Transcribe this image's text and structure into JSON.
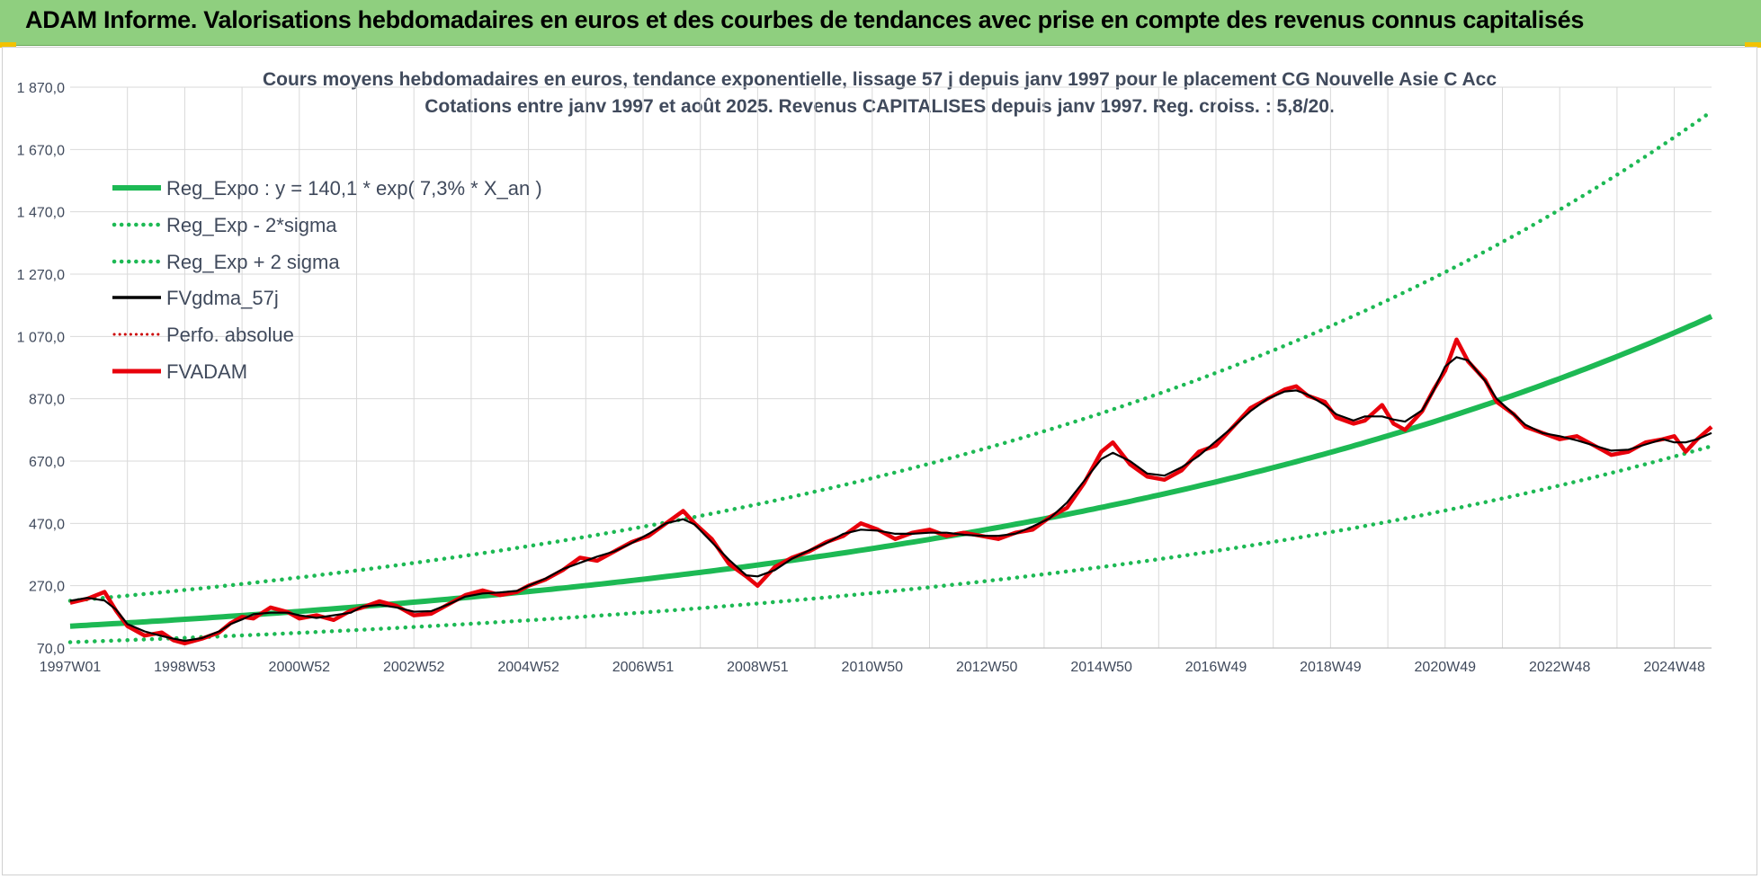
{
  "banner": {
    "title": "ADAM Informe. Valorisations hebdomadaires en euros et des courbes de tendances avec prise en compte des revenus connus capitalisés"
  },
  "colors": {
    "banner_bg": "#8fcf7f",
    "reg_green": "#1db954",
    "fv_black": "#000000",
    "fvadam_red": "#e8000b",
    "perfo_red": "#cc0000",
    "grid": "#d9d9d9",
    "text": "#404a5c"
  },
  "chart_data": {
    "type": "line",
    "title": "Cours moyens  hebdomadaires en euros, tendance exponentielle, lissage 57 j depuis janv 1997 pour le placement CG Nouvelle Asie C Acc",
    "subtitle": "Cotations entre janv 1997 et août 2025. Revenus CAPITALISES depuis janv 1997. Reg. croiss. : 5,8/20.",
    "xlabel": "",
    "ylabel": "",
    "grid": true,
    "legend_position": "top-left",
    "xlim": [
      1997.0,
      2025.65
    ],
    "ylim": [
      70,
      1870
    ],
    "y_ticks": [
      "70,0",
      "270,0",
      "470,0",
      "670,0",
      "870,0",
      "1 070,0",
      "1 270,0",
      "1 470,0",
      "1 670,0",
      "1 870,0"
    ],
    "y_tick_values": [
      70,
      270,
      470,
      670,
      870,
      1070,
      1270,
      1470,
      1670,
      1870
    ],
    "x_tick_labels": [
      "1997W01",
      "1998W53",
      "2000W52",
      "2002W52",
      "2004W52",
      "2006W51",
      "2008W51",
      "2010W50",
      "2012W50",
      "2014W50",
      "2016W49",
      "2018W49",
      "2020W49",
      "2022W48",
      "2024W48"
    ],
    "x_tick_values": [
      1997.0,
      1999.0,
      2001.0,
      2003.0,
      2005.0,
      2007.0,
      2009.0,
      2011.0,
      2013.0,
      2015.0,
      2017.0,
      2019.0,
      2021.0,
      2023.0,
      2025.0
    ],
    "regression": {
      "a": 140.1,
      "rate": 0.073,
      "start": 1997.0,
      "sigma_factor": 1.58
    },
    "series": [
      {
        "name": "Reg_Expo : y = 140,1 * exp( 7,3% *  X_an )",
        "style": "solid-thick",
        "color": "#1db954"
      },
      {
        "name": "Reg_Exp - 2*sigma",
        "style": "dotted",
        "color": "#1db954"
      },
      {
        "name": "Reg_Exp + 2 sigma",
        "style": "dotted",
        "color": "#1db954"
      },
      {
        "name": "FVgdma_57j",
        "style": "solid",
        "color": "#000000"
      },
      {
        "name": "Perfo. absolue",
        "style": "dotted",
        "color": "#cc0000"
      },
      {
        "name": "FVADAM",
        "style": "solid-thick",
        "color": "#e8000b",
        "x": [
          1997.0,
          1997.3,
          1997.6,
          1997.8,
          1998.0,
          1998.3,
          1998.6,
          1998.8,
          1999.0,
          1999.3,
          1999.6,
          1999.8,
          2000.0,
          2000.2,
          2000.5,
          2000.8,
          2001.0,
          2001.3,
          2001.6,
          2001.9,
          2002.1,
          2002.4,
          2002.7,
          2003.0,
          2003.3,
          2003.6,
          2003.9,
          2004.2,
          2004.5,
          2004.8,
          2005.0,
          2005.3,
          2005.6,
          2005.9,
          2006.2,
          2006.5,
          2006.8,
          2007.1,
          2007.4,
          2007.7,
          2007.9,
          2008.2,
          2008.5,
          2008.8,
          2009.0,
          2009.3,
          2009.6,
          2009.9,
          2010.2,
          2010.5,
          2010.8,
          2011.1,
          2011.4,
          2011.7,
          2012.0,
          2012.3,
          2012.6,
          2012.9,
          2013.2,
          2013.5,
          2013.8,
          2014.1,
          2014.4,
          2014.7,
          2015.0,
          2015.2,
          2015.5,
          2015.8,
          2016.1,
          2016.4,
          2016.7,
          2017.0,
          2017.3,
          2017.6,
          2017.9,
          2018.2,
          2018.4,
          2018.6,
          2018.9,
          2019.1,
          2019.4,
          2019.6,
          2019.9,
          2020.1,
          2020.3,
          2020.6,
          2020.8,
          2021.0,
          2021.2,
          2021.4,
          2021.7,
          2021.9,
          2022.2,
          2022.4,
          2022.7,
          2023.0,
          2023.3,
          2023.6,
          2023.9,
          2024.2,
          2024.5,
          2024.8,
          2025.0,
          2025.2,
          2025.4,
          2025.65
        ],
        "values": [
          215,
          228,
          250,
          190,
          140,
          110,
          120,
          95,
          85,
          100,
          120,
          150,
          170,
          165,
          200,
          185,
          165,
          175,
          160,
          190,
          200,
          220,
          205,
          175,
          180,
          210,
          240,
          255,
          240,
          250,
          270,
          290,
          320,
          360,
          350,
          380,
          410,
          430,
          470,
          510,
          470,
          420,
          340,
          300,
          270,
          330,
          360,
          380,
          410,
          430,
          470,
          450,
          420,
          440,
          450,
          430,
          440,
          430,
          420,
          440,
          450,
          490,
          520,
          600,
          700,
          730,
          660,
          620,
          610,
          640,
          700,
          720,
          780,
          840,
          870,
          900,
          910,
          880,
          860,
          810,
          790,
          800,
          850,
          790,
          770,
          830,
          900,
          960,
          1060,
          990,
          930,
          860,
          820,
          780,
          760,
          740,
          750,
          720,
          690,
          700,
          730,
          740,
          750,
          700,
          740,
          780
        ]
      }
    ]
  }
}
